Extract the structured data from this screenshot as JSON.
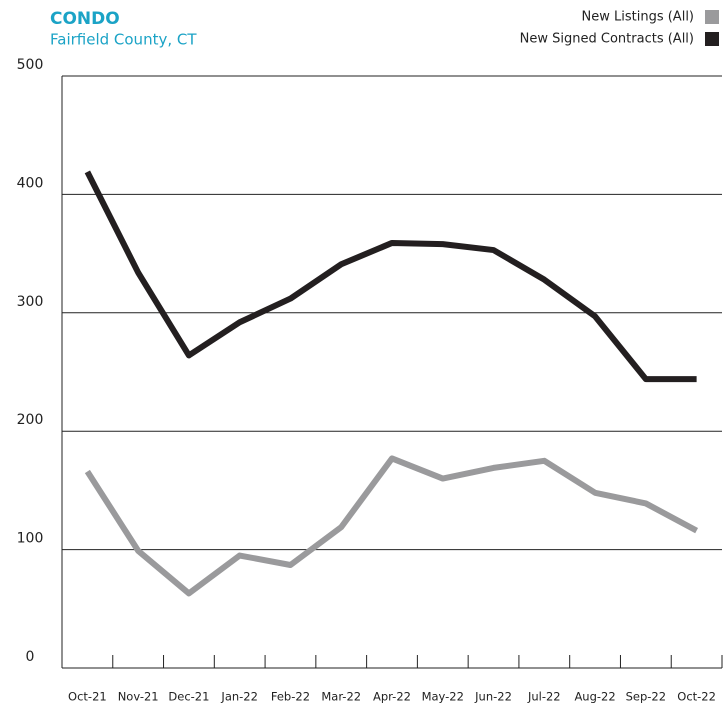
{
  "chart_data": {
    "type": "line",
    "title": "CONDO",
    "subtitle": "Fairfield County, CT",
    "categories": [
      "Oct-21",
      "Nov-21",
      "Dec-21",
      "Jan-22",
      "Feb-22",
      "Mar-22",
      "Apr-22",
      "May-22",
      "Jun-22",
      "Jul-22",
      "Aug-22",
      "Sep-22",
      "Oct-22"
    ],
    "series": [
      {
        "name": "New Listings (All)",
        "color": "#9a9a9c",
        "values": [
          166,
          99,
          63,
          95,
          87,
          119,
          177,
          160,
          169,
          175,
          148,
          139,
          116
        ]
      },
      {
        "name": "New Signed Contracts (All)",
        "color": "#231f20",
        "values": [
          419,
          334,
          264,
          292,
          312,
          341,
          359,
          358,
          353,
          328,
          297,
          244,
          244
        ]
      }
    ],
    "ylim": [
      0,
      500
    ],
    "yticks": [
      0,
      100,
      200,
      300,
      400,
      500
    ],
    "grid": true,
    "legend": "top-right"
  }
}
